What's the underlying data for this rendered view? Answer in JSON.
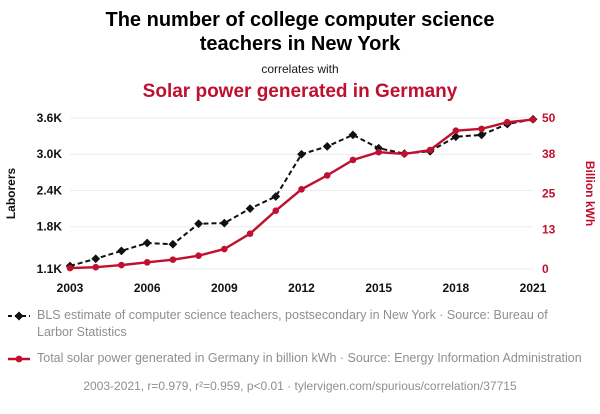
{
  "header": {
    "title": "The number of college computer science teachers in New York",
    "connector": "correlates with",
    "subtitle": "Solar power generated in Germany"
  },
  "colors": {
    "accent_red": "#c01030",
    "series_black": "#111111",
    "muted_text": "#8f8f8f",
    "gridline": "#ececec"
  },
  "legend": {
    "series1": "BLS estimate of computer science teachers, postsecondary in New York · Source: Bureau of Larbor Statistics",
    "series2": "Total solar power generated in Germany in billion kWh · Source: Energy Information Administration"
  },
  "footer": {
    "text": "2003-2021, r=0.979, r²=0.959, p<0.01 · tylervigen.com/spurious/correlation/37715"
  },
  "chart_data": {
    "type": "line",
    "x": [
      2003,
      2004,
      2005,
      2006,
      2007,
      2008,
      2009,
      2010,
      2011,
      2012,
      2013,
      2014,
      2015,
      2016,
      2017,
      2018,
      2019,
      2020,
      2021
    ],
    "x_ticks": [
      2003,
      2006,
      2009,
      2012,
      2015,
      2018,
      2021
    ],
    "left_axis": {
      "label": "Laborers",
      "range": [
        1100,
        3600
      ],
      "ticks": [
        1100,
        1800,
        2400,
        3000,
        3600
      ],
      "tick_labels": [
        "1.1K",
        "1.8K",
        "2.4K",
        "3.0K",
        "3.6K"
      ]
    },
    "right_axis": {
      "label": "Billion kWh",
      "range": [
        0,
        50
      ],
      "ticks": [
        0,
        13,
        25,
        38,
        50
      ],
      "tick_labels": [
        "0",
        "13",
        "25",
        "38",
        "50"
      ]
    },
    "series": [
      {
        "name": "BLS estimate of computer science teachers, postsecondary in New York",
        "axis": "left",
        "style": "dashed",
        "marker": "diamond",
        "color": "#111111",
        "values": [
          1150,
          1270,
          1400,
          1530,
          1510,
          1850,
          1860,
          2100,
          2300,
          3000,
          3130,
          3320,
          3100,
          3010,
          3050,
          3290,
          3320,
          3500,
          3580
        ]
      },
      {
        "name": "Total solar power generated in Germany in billion kWh",
        "axis": "right",
        "style": "solid",
        "marker": "circle",
        "color": "#c01030",
        "values": [
          0.3,
          0.6,
          1.3,
          2.2,
          3.1,
          4.4,
          6.6,
          11.7,
          19.3,
          26.4,
          31.0,
          36.1,
          38.7,
          38.1,
          39.4,
          45.8,
          46.4,
          48.6,
          49.5
        ]
      }
    ]
  }
}
